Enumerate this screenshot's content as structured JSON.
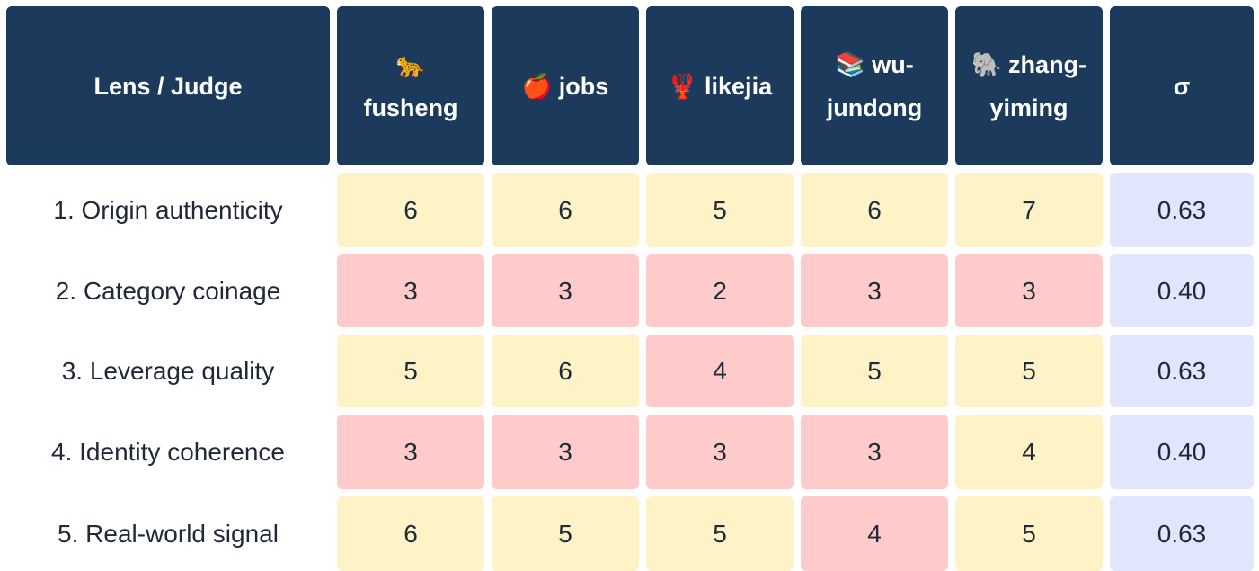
{
  "table": {
    "header": [
      "Lens / Judge",
      "🐆 fusheng",
      "🍎 jobs",
      "🦞 likejia",
      "📚 wu-jundong",
      "🐘 zhang-yiming",
      "σ"
    ],
    "sigma_color": "#e0e6fb",
    "rows": [
      {
        "lens": "1. Origin authenticity",
        "scores": [
          6,
          6,
          5,
          6,
          7
        ],
        "colors": [
          "#fdf3c6",
          "#fdf3c6",
          "#fdf3c6",
          "#fdf3c6",
          "#fdf3c6"
        ],
        "sigma": "0.63"
      },
      {
        "lens": "2. Category coinage",
        "scores": [
          3,
          3,
          2,
          3,
          3
        ],
        "colors": [
          "#fecaca",
          "#fecaca",
          "#fecaca",
          "#fecaca",
          "#fecaca"
        ],
        "sigma": "0.40"
      },
      {
        "lens": "3. Leverage quality",
        "scores": [
          5,
          6,
          4,
          5,
          5
        ],
        "colors": [
          "#fdf3c6",
          "#fdf3c6",
          "#fecaca",
          "#fdf3c6",
          "#fdf3c6"
        ],
        "sigma": "0.63"
      },
      {
        "lens": "4. Identity coherence",
        "scores": [
          3,
          3,
          3,
          3,
          4
        ],
        "colors": [
          "#fecaca",
          "#fecaca",
          "#fecaca",
          "#fecaca",
          "#fdf3c6"
        ],
        "sigma": "0.40"
      },
      {
        "lens": "5. Real-world signal",
        "scores": [
          6,
          5,
          5,
          4,
          5
        ],
        "colors": [
          "#fdf3c6",
          "#fdf3c6",
          "#fdf3c6",
          "#fecaca",
          "#fdf3c6"
        ],
        "sigma": "0.63"
      }
    ]
  }
}
